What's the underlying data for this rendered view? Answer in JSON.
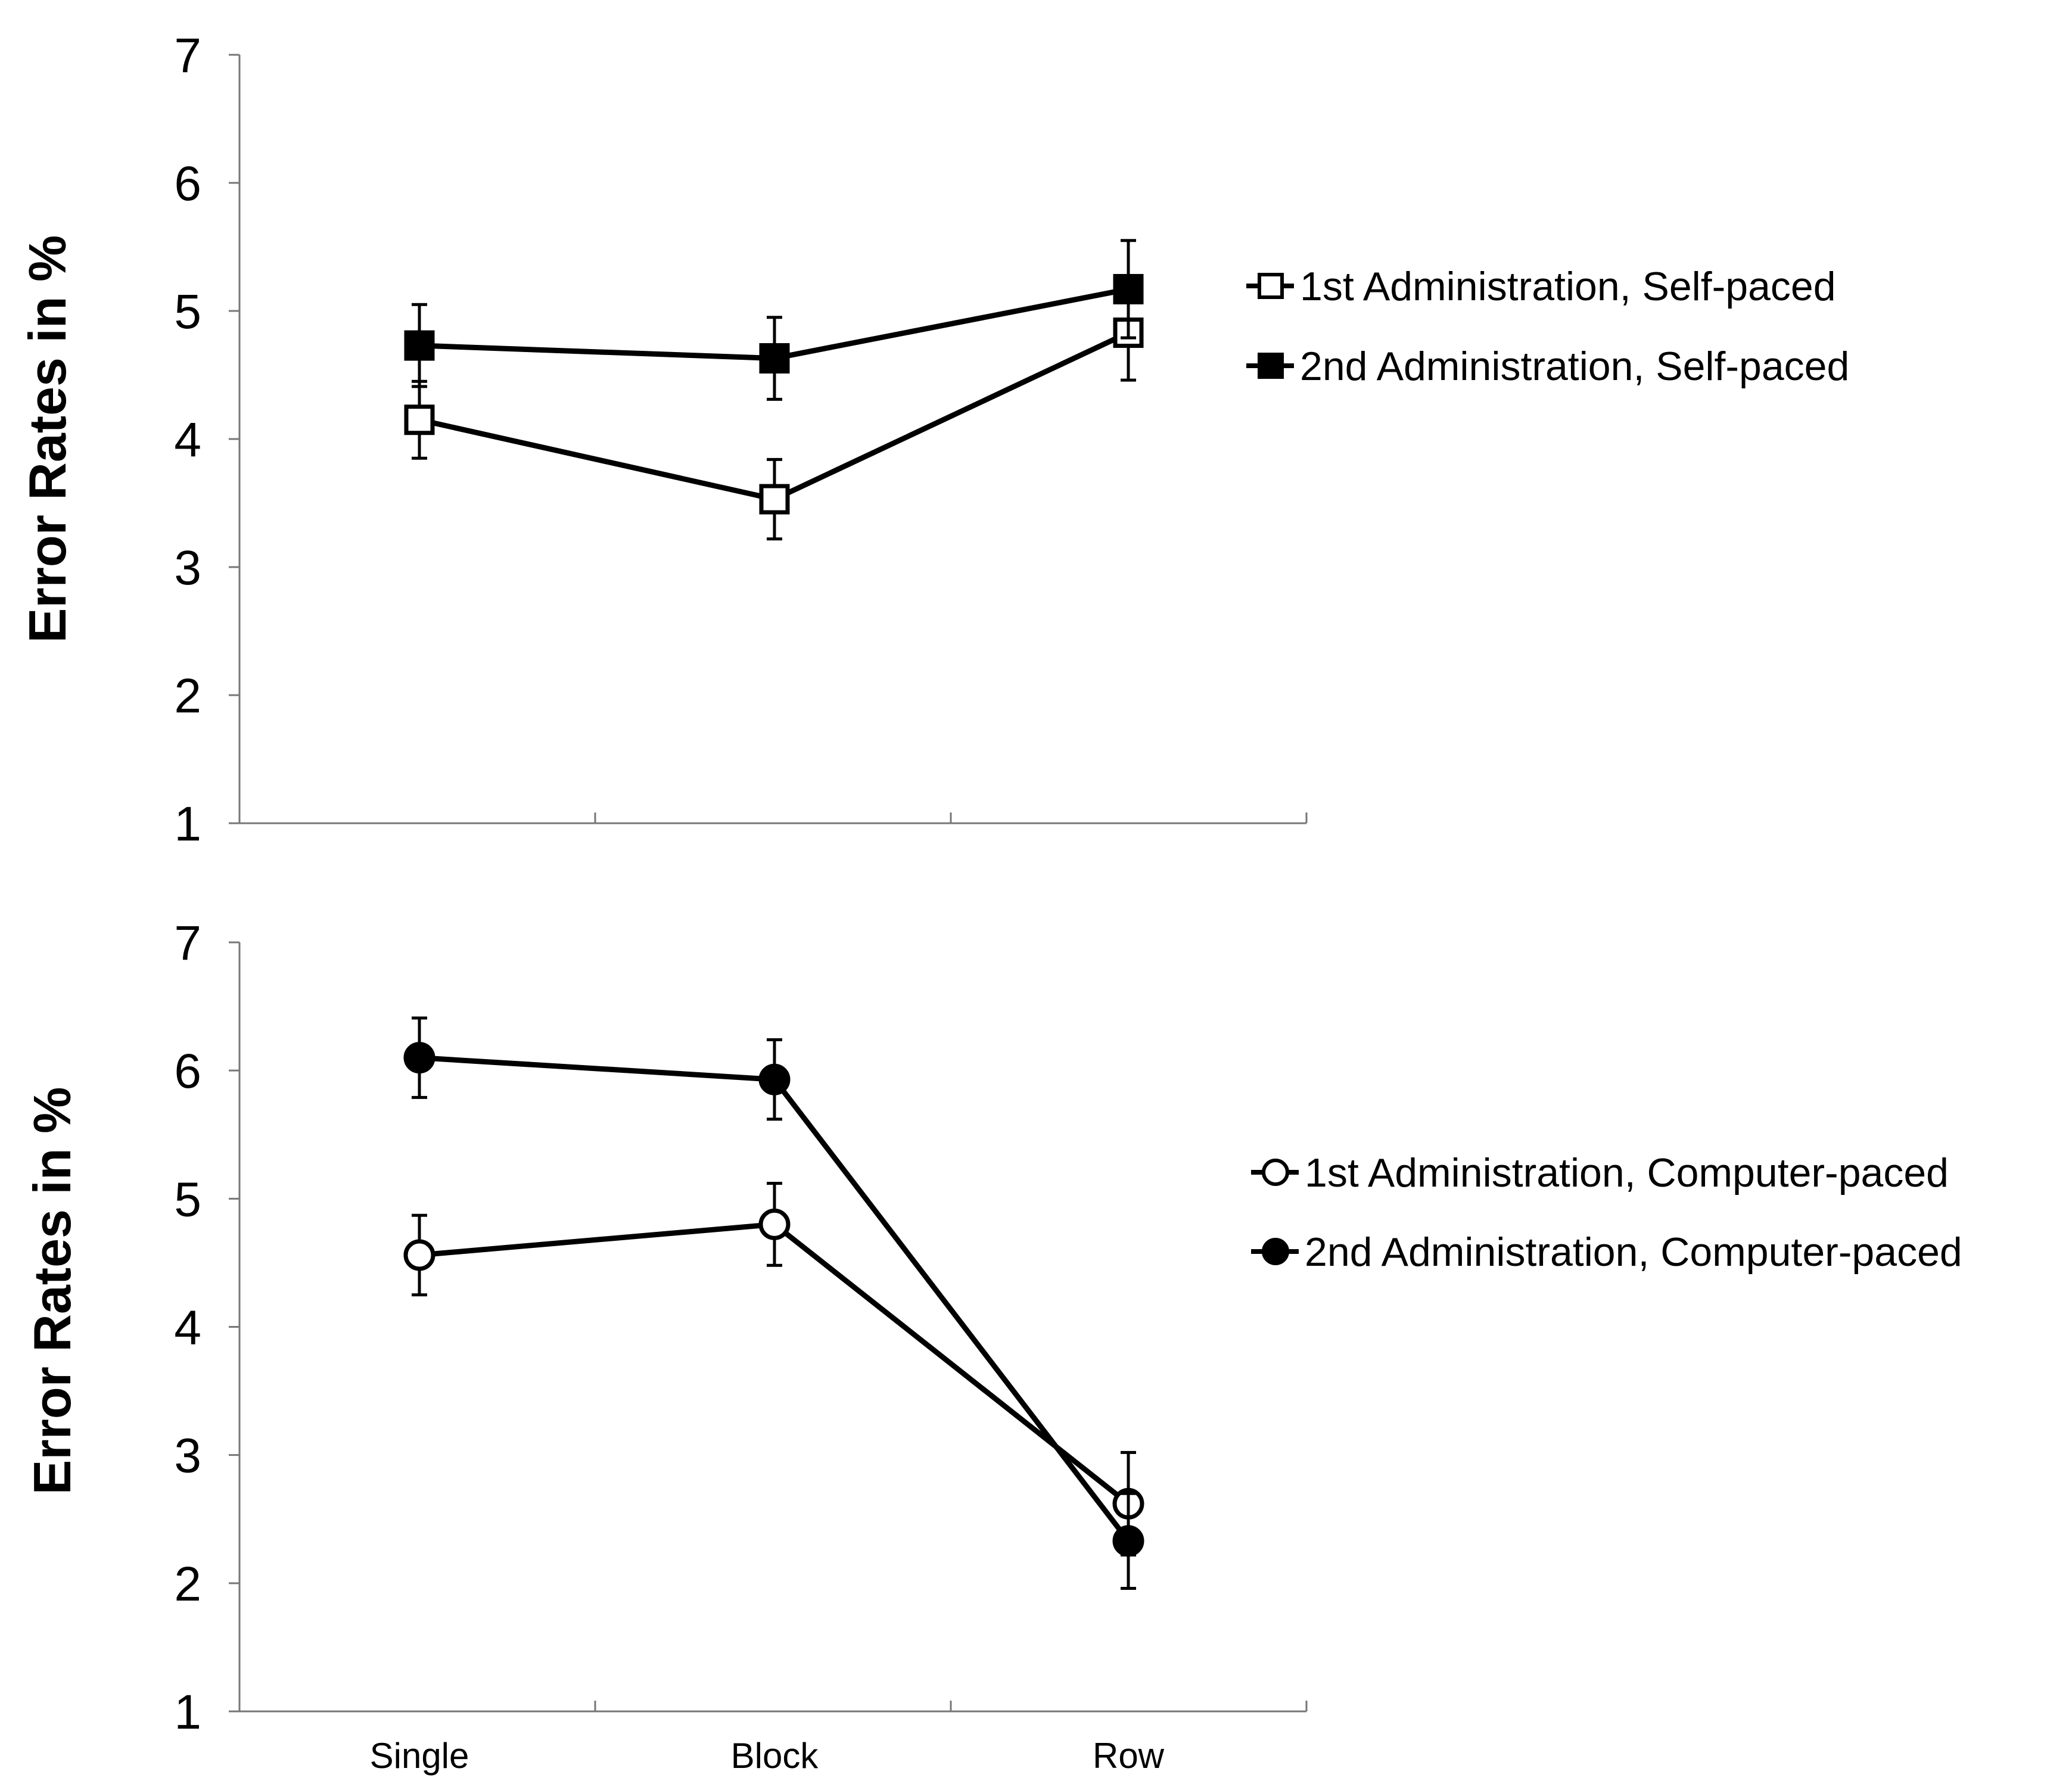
{
  "chart_data": [
    {
      "type": "line",
      "panel": "top",
      "title": "",
      "xlabel": "",
      "ylabel": "Error Rates in %",
      "ylim": [
        1,
        7
      ],
      "yticks": [
        1,
        2,
        3,
        4,
        5,
        6,
        7
      ],
      "categories": [
        "Single",
        "Block",
        "Row"
      ],
      "show_category_labels": false,
      "grid": false,
      "legend_position": "right",
      "series": [
        {
          "name": "1st Administration, Self-paced",
          "marker": "square",
          "filled": false,
          "values": [
            4.15,
            3.53,
            4.83
          ],
          "errors": [
            0.3,
            0.31,
            0.37
          ]
        },
        {
          "name": "2nd Administration, Self-paced",
          "marker": "square",
          "filled": true,
          "values": [
            4.73,
            4.63,
            5.17
          ],
          "errors": [
            0.32,
            0.32,
            0.38
          ]
        }
      ]
    },
    {
      "type": "line",
      "panel": "bottom",
      "title": "",
      "xlabel": "",
      "ylabel": "Error Rates in %",
      "ylim": [
        1,
        7
      ],
      "yticks": [
        1,
        2,
        3,
        4,
        5,
        6,
        7
      ],
      "categories": [
        "Single",
        "Block",
        "Row"
      ],
      "show_category_labels": true,
      "grid": false,
      "legend_position": "right",
      "series": [
        {
          "name": "1st Administration, Computer-paced",
          "marker": "circle",
          "filled": false,
          "values": [
            4.56,
            4.8,
            2.62
          ],
          "errors": [
            0.31,
            0.32,
            0.4
          ]
        },
        {
          "name": "2nd Administration, Computer-paced",
          "marker": "circle",
          "filled": true,
          "values": [
            6.1,
            5.93,
            2.33
          ],
          "errors": [
            0.31,
            0.31,
            0.37
          ]
        }
      ]
    }
  ],
  "colors": {
    "ink": "#000000",
    "axis": "#777777",
    "background": "#ffffff"
  }
}
